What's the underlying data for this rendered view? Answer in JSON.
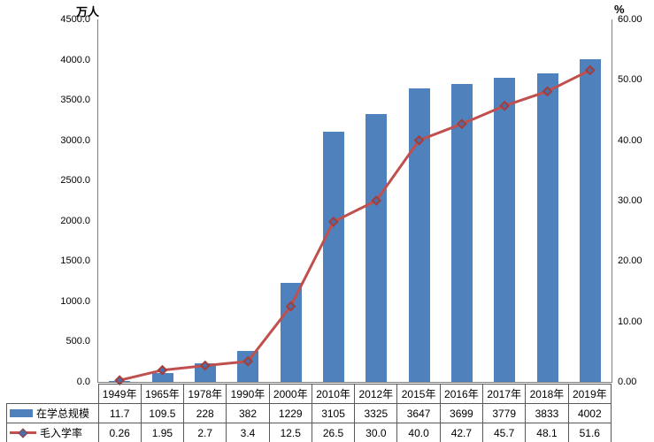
{
  "chart_data": {
    "type": "bar+line combo with data table",
    "categories": [
      "1949年",
      "1965年",
      "1978年",
      "1990年",
      "2000年",
      "2010年",
      "2012年",
      "2015年",
      "2016年",
      "2017年",
      "2018年",
      "2019年"
    ],
    "series": [
      {
        "name": "在学总规模",
        "type": "bar",
        "axis": "left",
        "values": [
          11.7,
          109.5,
          228,
          382,
          1229,
          3105,
          3325,
          3647,
          3699,
          3779,
          3833,
          4002
        ],
        "display": [
          "11.7",
          "109.5",
          "228",
          "382",
          "1229",
          "3105",
          "3325",
          "3647",
          "3699",
          "3779",
          "3833",
          "4002"
        ]
      },
      {
        "name": "毛入学率",
        "type": "line",
        "axis": "right",
        "values": [
          0.26,
          1.95,
          2.7,
          3.4,
          12.5,
          26.5,
          30.0,
          40.0,
          42.7,
          45.7,
          48.1,
          51.6
        ],
        "display": [
          "0.26",
          "1.95",
          "2.7",
          "3.4",
          "12.5",
          "26.5",
          "30.0",
          "40.0",
          "42.7",
          "45.7",
          "48.1",
          "51.6"
        ]
      }
    ],
    "left_axis": {
      "title": "万人",
      "min": 0,
      "max": 4500,
      "step": 500,
      "tick_labels": [
        "0.0",
        "500.0",
        "1000.0",
        "1500.0",
        "2000.0",
        "2500.0",
        "3000.0",
        "3500.0",
        "4000.0",
        "4500.0"
      ]
    },
    "right_axis": {
      "title": "%",
      "min": 0,
      "max": 60,
      "step": 10,
      "tick_labels": [
        "0.00",
        "10.00",
        "20.00",
        "30.00",
        "40.00",
        "50.00",
        "60.00"
      ]
    },
    "colors": {
      "bar": "#4F81BD",
      "line": "#C0504D",
      "marker_fill": "#4B6EA9",
      "marker_stroke": "#A43E3A",
      "axis": "#808080",
      "table_border": "#595959"
    },
    "grid": false,
    "legend_position": "data-table-left",
    "title": ""
  }
}
